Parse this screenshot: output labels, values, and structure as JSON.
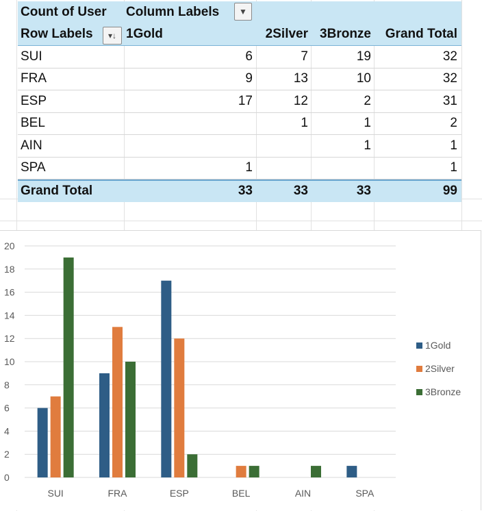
{
  "pivot": {
    "value_field": "Count of User",
    "column_labels": "Column Labels",
    "row_labels": "Row Labels",
    "columns": [
      "1Gold",
      "2Silver",
      "3Bronze",
      "Grand Total"
    ],
    "rows": [
      {
        "label": "SUI",
        "values": [
          "6",
          "7",
          "19",
          "32"
        ]
      },
      {
        "label": "FRA",
        "values": [
          "9",
          "13",
          "10",
          "32"
        ]
      },
      {
        "label": "ESP",
        "values": [
          "17",
          "12",
          "2",
          "31"
        ]
      },
      {
        "label": "BEL",
        "values": [
          "",
          "1",
          "1",
          "2"
        ]
      },
      {
        "label": "AIN",
        "values": [
          "",
          "",
          "1",
          "1"
        ]
      },
      {
        "label": "SPA",
        "values": [
          "1",
          "",
          "",
          "1"
        ]
      }
    ],
    "grand_total": {
      "label": "Grand Total",
      "values": [
        "33",
        "33",
        "33",
        "99"
      ]
    }
  },
  "chart_data": {
    "type": "bar",
    "title": "",
    "xlabel": "",
    "ylabel": "",
    "categories": [
      "SUI",
      "FRA",
      "ESP",
      "BEL",
      "AIN",
      "SPA"
    ],
    "series": [
      {
        "name": "1Gold",
        "color": "#2e5d86",
        "values": [
          6,
          9,
          17,
          0,
          0,
          1
        ]
      },
      {
        "name": "2Silver",
        "color": "#e07c3e",
        "values": [
          7,
          13,
          12,
          1,
          0,
          0
        ]
      },
      {
        "name": "3Bronze",
        "color": "#3b6e35",
        "values": [
          19,
          10,
          2,
          1,
          1,
          0
        ]
      }
    ],
    "ylim": [
      0,
      20
    ],
    "yticks": [
      0,
      2,
      4,
      6,
      8,
      10,
      12,
      14,
      16,
      18,
      20
    ],
    "grid": true,
    "legend": "right"
  }
}
